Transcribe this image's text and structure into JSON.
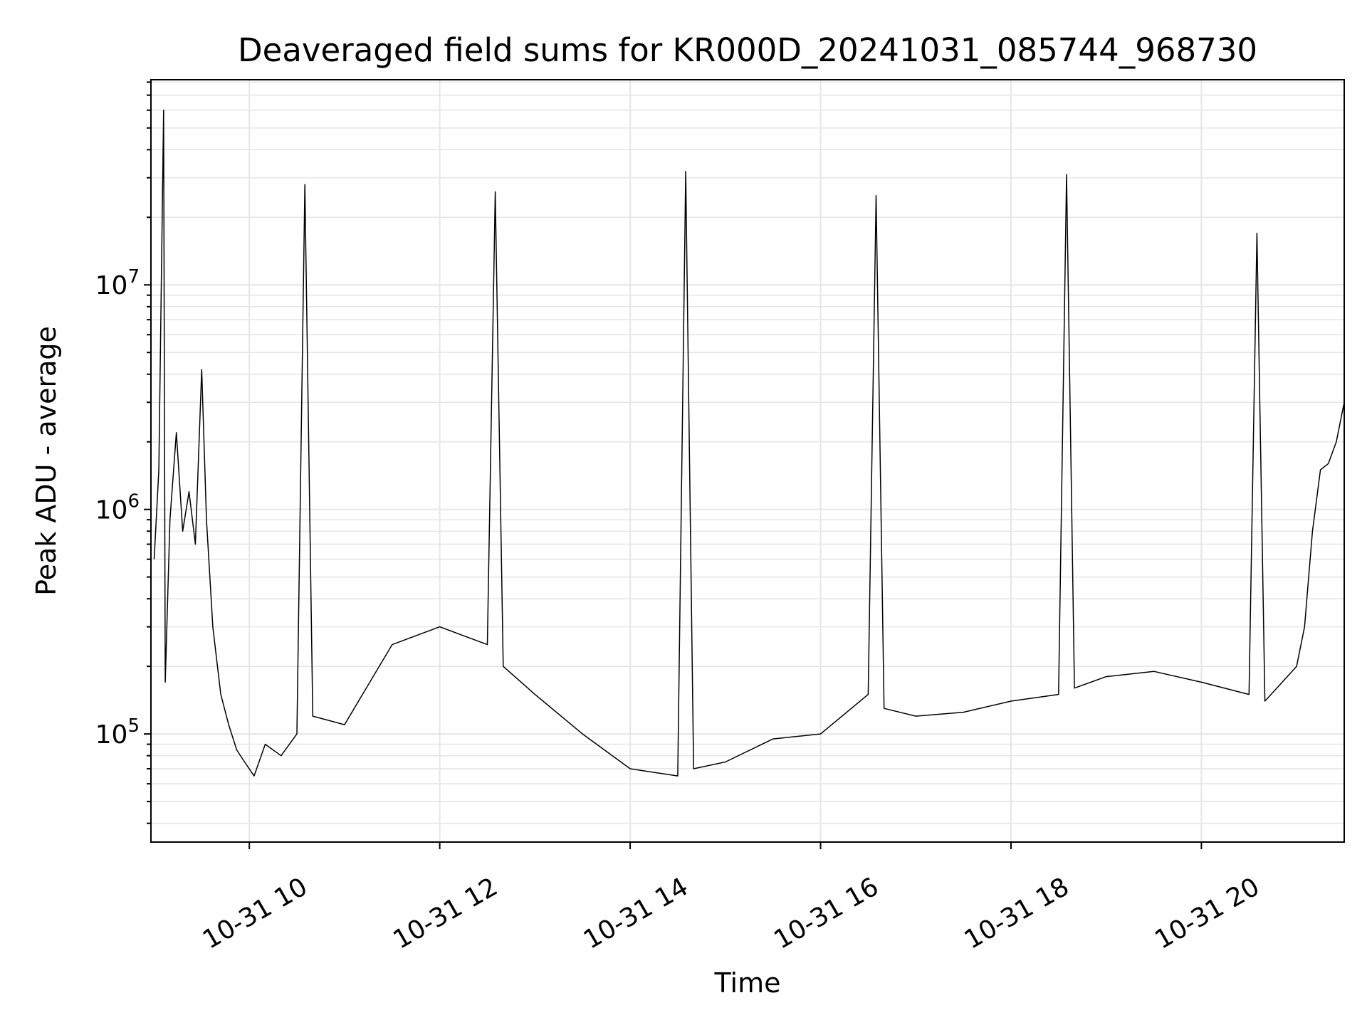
{
  "chart_data": {
    "type": "line",
    "title": "Deaveraged field sums for KR000D_20241031_085744_968730",
    "xlabel": "Time",
    "ylabel": "Peak ADU - average",
    "x_ticks": [
      "10-31 10",
      "10-31 12",
      "10-31 14",
      "10-31 16",
      "10-31 18",
      "10-31 20"
    ],
    "y_ticks": [
      {
        "base": "10",
        "exp": "5",
        "value": 100000
      },
      {
        "base": "10",
        "exp": "6",
        "value": 1000000
      },
      {
        "base": "10",
        "exp": "7",
        "value": 10000000
      }
    ],
    "xlim": [
      "2024-10-31 08:58",
      "2024-10-31 21:30"
    ],
    "ylim": [
      33000,
      82000000
    ],
    "yscale": "log",
    "grid": true,
    "colors": {
      "line": "#000000",
      "grid": "#e6e6e6"
    },
    "series": [
      {
        "points": [
          [
            "2024-10-31 09:00",
            600000
          ],
          [
            "2024-10-31 09:03",
            1500000
          ],
          [
            "2024-10-31 09:06",
            60000000
          ],
          [
            "2024-10-31 09:07",
            170000
          ],
          [
            "2024-10-31 09:10",
            900000
          ],
          [
            "2024-10-31 09:14",
            2200000
          ],
          [
            "2024-10-31 09:18",
            800000
          ],
          [
            "2024-10-31 09:22",
            1200000
          ],
          [
            "2024-10-31 09:26",
            700000
          ],
          [
            "2024-10-31 09:30",
            4200000
          ],
          [
            "2024-10-31 09:33",
            900000
          ],
          [
            "2024-10-31 09:37",
            300000
          ],
          [
            "2024-10-31 09:42",
            150000
          ],
          [
            "2024-10-31 09:47",
            110000
          ],
          [
            "2024-10-31 09:52",
            85000
          ],
          [
            "2024-10-31 09:57",
            75000
          ],
          [
            "2024-10-31 10:03",
            65000
          ],
          [
            "2024-10-31 10:10",
            90000
          ],
          [
            "2024-10-31 10:20",
            80000
          ],
          [
            "2024-10-31 10:30",
            100000
          ],
          [
            "2024-10-31 10:35",
            28000000
          ],
          [
            "2024-10-31 10:40",
            120000
          ],
          [
            "2024-10-31 11:00",
            110000
          ],
          [
            "2024-10-31 11:30",
            250000
          ],
          [
            "2024-10-31 12:00",
            300000
          ],
          [
            "2024-10-31 12:30",
            250000
          ],
          [
            "2024-10-31 12:35",
            26000000
          ],
          [
            "2024-10-31 12:40",
            200000
          ],
          [
            "2024-10-31 13:00",
            150000
          ],
          [
            "2024-10-31 13:30",
            100000
          ],
          [
            "2024-10-31 14:00",
            70000
          ],
          [
            "2024-10-31 14:30",
            65000
          ],
          [
            "2024-10-31 14:35",
            32000000
          ],
          [
            "2024-10-31 14:40",
            70000
          ],
          [
            "2024-10-31 15:00",
            75000
          ],
          [
            "2024-10-31 15:30",
            95000
          ],
          [
            "2024-10-31 16:00",
            100000
          ],
          [
            "2024-10-31 16:30",
            150000
          ],
          [
            "2024-10-31 16:35",
            25000000
          ],
          [
            "2024-10-31 16:40",
            130000
          ],
          [
            "2024-10-31 17:00",
            120000
          ],
          [
            "2024-10-31 17:30",
            125000
          ],
          [
            "2024-10-31 18:00",
            140000
          ],
          [
            "2024-10-31 18:30",
            150000
          ],
          [
            "2024-10-31 18:35",
            31000000
          ],
          [
            "2024-10-31 18:40",
            160000
          ],
          [
            "2024-10-31 19:00",
            180000
          ],
          [
            "2024-10-31 19:30",
            190000
          ],
          [
            "2024-10-31 20:00",
            170000
          ],
          [
            "2024-10-31 20:30",
            150000
          ],
          [
            "2024-10-31 20:35",
            17000000
          ],
          [
            "2024-10-31 20:40",
            140000
          ],
          [
            "2024-10-31 21:00",
            200000
          ],
          [
            "2024-10-31 21:05",
            300000
          ],
          [
            "2024-10-31 21:10",
            800000
          ],
          [
            "2024-10-31 21:15",
            1500000
          ],
          [
            "2024-10-31 21:20",
            1600000
          ],
          [
            "2024-10-31 21:25",
            2000000
          ],
          [
            "2024-10-31 21:30",
            3000000
          ]
        ]
      }
    ]
  }
}
